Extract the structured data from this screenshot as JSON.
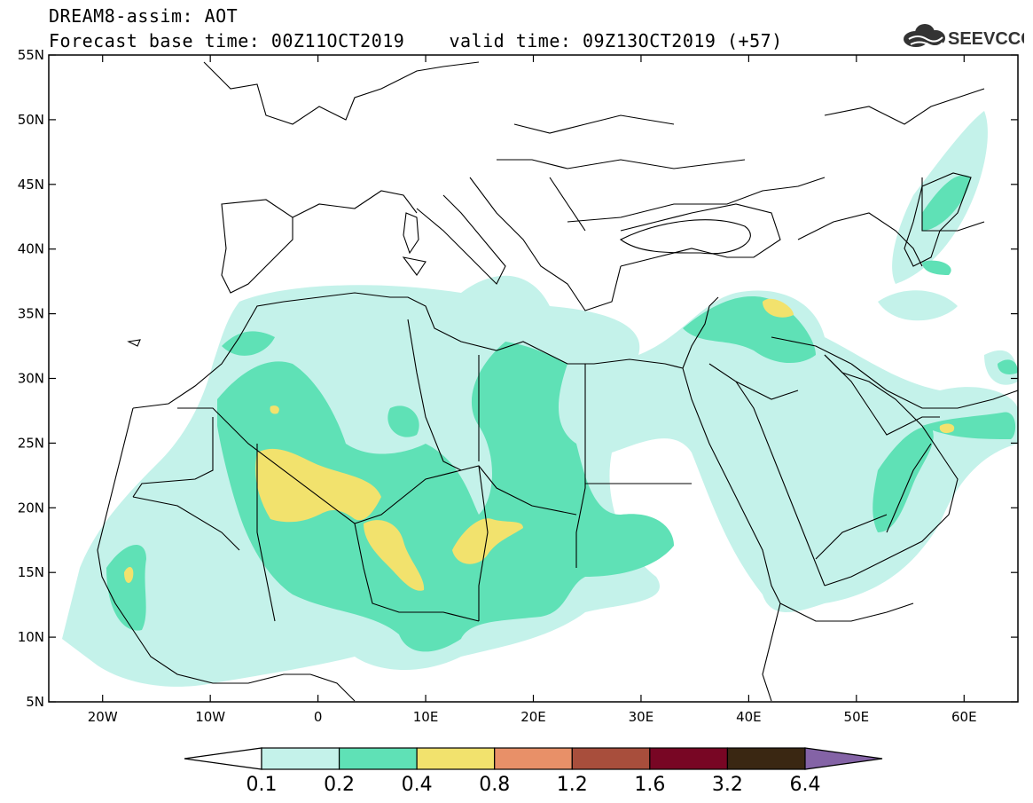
{
  "header": {
    "title": "DREAM8-assim: AOT",
    "subtitle": "Forecast base time: 00Z11OCT2019    valid time: 09Z13OCT2019 (+57)"
  },
  "logo": {
    "text": "SEEVCCC",
    "icon": "cloud-icon"
  },
  "map": {
    "lon_range": [
      -25,
      65
    ],
    "lat_range": [
      5,
      55
    ],
    "lat_ticks": [
      "55N",
      "50N",
      "45N",
      "40N",
      "35N",
      "30N",
      "25N",
      "20N",
      "15N",
      "10N",
      "5N"
    ],
    "lon_ticks": [
      "20W",
      "10W",
      "0",
      "10E",
      "20E",
      "30E",
      "40E",
      "50E",
      "60E"
    ],
    "background": "#ffffff",
    "coastline_color": "#000000"
  },
  "colorbar": {
    "labels": [
      "0.1",
      "0.2",
      "0.4",
      "0.8",
      "1.2",
      "1.6",
      "3.2",
      "6.4"
    ],
    "colors": [
      "#c4f2ea",
      "#5fe1b6",
      "#f2e26d",
      "#e89068",
      "#a84e3c",
      "#780624",
      "#3a2712",
      "#8463a6"
    ],
    "under_color": "#ffffff"
  },
  "aot_levels": [
    {
      "name": "0.1-0.2",
      "color": "#c4f2ea"
    },
    {
      "name": "0.2-0.4",
      "color": "#5fe1b6"
    },
    {
      "name": "0.4-0.8",
      "color": "#f2e26d"
    }
  ]
}
